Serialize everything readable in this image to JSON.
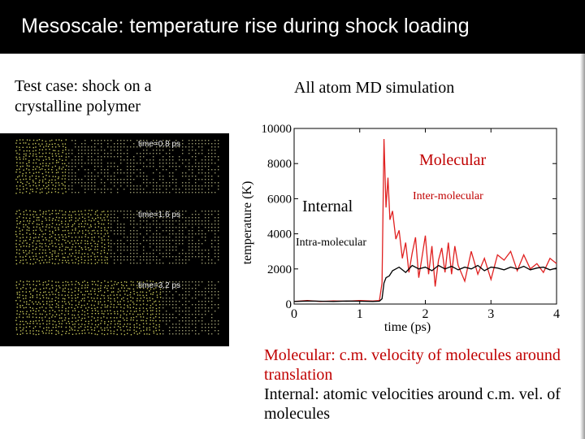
{
  "slide": {
    "title": "Mesoscale: temperature rise during shock loading",
    "left_text": "Test case: shock on a crystalline polymer",
    "center_text": "All atom MD simulation",
    "notes": [
      "Molecular: c.m. velocity of molecules around translation",
      "Internal: atomic velocities around c.m. vel. of molecules"
    ]
  },
  "snapshots": [
    {
      "label": "time=0.8 ps",
      "shocked_fraction": 0.25
    },
    {
      "label": "time=1.6 ps",
      "shocked_fraction": 0.45
    },
    {
      "label": "time=3.2 ps",
      "shocked_fraction": 0.72
    }
  ],
  "colors": {
    "title_bg": "#000000",
    "title_text": "#ffffff",
    "accent_red": "#c00000",
    "series_red": "#e02020",
    "series_black": "#000000",
    "atom_yellow": "#c8c85a"
  },
  "chart_data": {
    "type": "line",
    "xlabel": "time (ps)",
    "ylabel": "temperature (K)",
    "xlim": [
      0,
      4
    ],
    "ylim": [
      0,
      10000
    ],
    "xticks": [
      0,
      1,
      2,
      3,
      4
    ],
    "yticks": [
      0,
      2000,
      4000,
      6000,
      8000,
      10000
    ],
    "annotations": [
      "Molecular",
      "Internal"
    ],
    "series": [
      {
        "name": "Inter-molecular",
        "color": "#e02020",
        "x": [
          0,
          0.2,
          0.4,
          0.6,
          0.8,
          1.0,
          1.2,
          1.3,
          1.34,
          1.37,
          1.4,
          1.43,
          1.46,
          1.5,
          1.55,
          1.6,
          1.65,
          1.7,
          1.75,
          1.8,
          1.85,
          1.9,
          1.95,
          2.0,
          2.05,
          2.1,
          2.15,
          2.2,
          2.25,
          2.3,
          2.35,
          2.4,
          2.45,
          2.5,
          2.6,
          2.7,
          2.8,
          2.9,
          3.0,
          3.1,
          3.2,
          3.3,
          3.4,
          3.5,
          3.6,
          3.7,
          3.8,
          3.9,
          4.0
        ],
        "y": [
          150,
          200,
          150,
          180,
          160,
          200,
          170,
          200,
          1200,
          9400,
          5500,
          7200,
          4800,
          5300,
          3700,
          4200,
          2600,
          3500,
          1800,
          2900,
          3800,
          1500,
          2700,
          3900,
          1700,
          3300,
          1000,
          2500,
          3200,
          1800,
          3500,
          1700,
          3300,
          2200,
          1300,
          3000,
          1700,
          2600,
          1400,
          2800,
          2500,
          3000,
          1900,
          2800,
          2000,
          2300,
          1800,
          2600,
          2300
        ]
      },
      {
        "name": "Intra-molecular",
        "color": "#000000",
        "x": [
          0,
          0.2,
          0.4,
          0.6,
          0.8,
          1.0,
          1.2,
          1.3,
          1.34,
          1.37,
          1.4,
          1.45,
          1.5,
          1.6,
          1.7,
          1.8,
          1.9,
          2.0,
          2.1,
          2.2,
          2.3,
          2.4,
          2.5,
          2.6,
          2.7,
          2.8,
          2.9,
          3.0,
          3.1,
          3.2,
          3.3,
          3.4,
          3.5,
          3.6,
          3.7,
          3.8,
          3.9,
          4.0
        ],
        "y": [
          150,
          170,
          160,
          150,
          170,
          160,
          150,
          160,
          300,
          1200,
          1500,
          1600,
          1900,
          2100,
          1800,
          2200,
          2000,
          2100,
          1900,
          2200,
          2000,
          2150,
          1950,
          2100,
          2000,
          2200,
          1900,
          2100,
          2050,
          1950,
          2100,
          2000,
          2150,
          1950,
          2050,
          2100,
          1950,
          2050
        ]
      }
    ]
  }
}
